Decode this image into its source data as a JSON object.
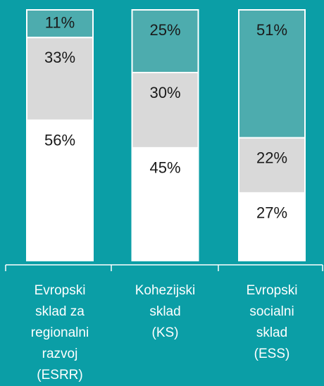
{
  "chart_data": {
    "type": "stacked_bar",
    "categories": [
      "Evropski\nsklad za\nregionalni\nrazvoj\n(ESRR)",
      "Kohezijski\nsklad\n(KS)",
      "Evropski\nsocialni\nsklad\n(ESS)"
    ],
    "series": [
      {
        "color": "#ffffff",
        "values": [
          56,
          45,
          27
        ],
        "value_labels": [
          "56%",
          "45%",
          "27%"
        ]
      },
      {
        "color": "#d9d9d9",
        "values": [
          33,
          30,
          22
        ],
        "value_labels": [
          "33%",
          "30%",
          "22%"
        ]
      },
      {
        "color": "#4dacae",
        "values": [
          11,
          25,
          51
        ],
        "value_labels": [
          "11%",
          "25%",
          "51%"
        ]
      }
    ],
    "ylim": [
      0,
      100
    ]
  }
}
